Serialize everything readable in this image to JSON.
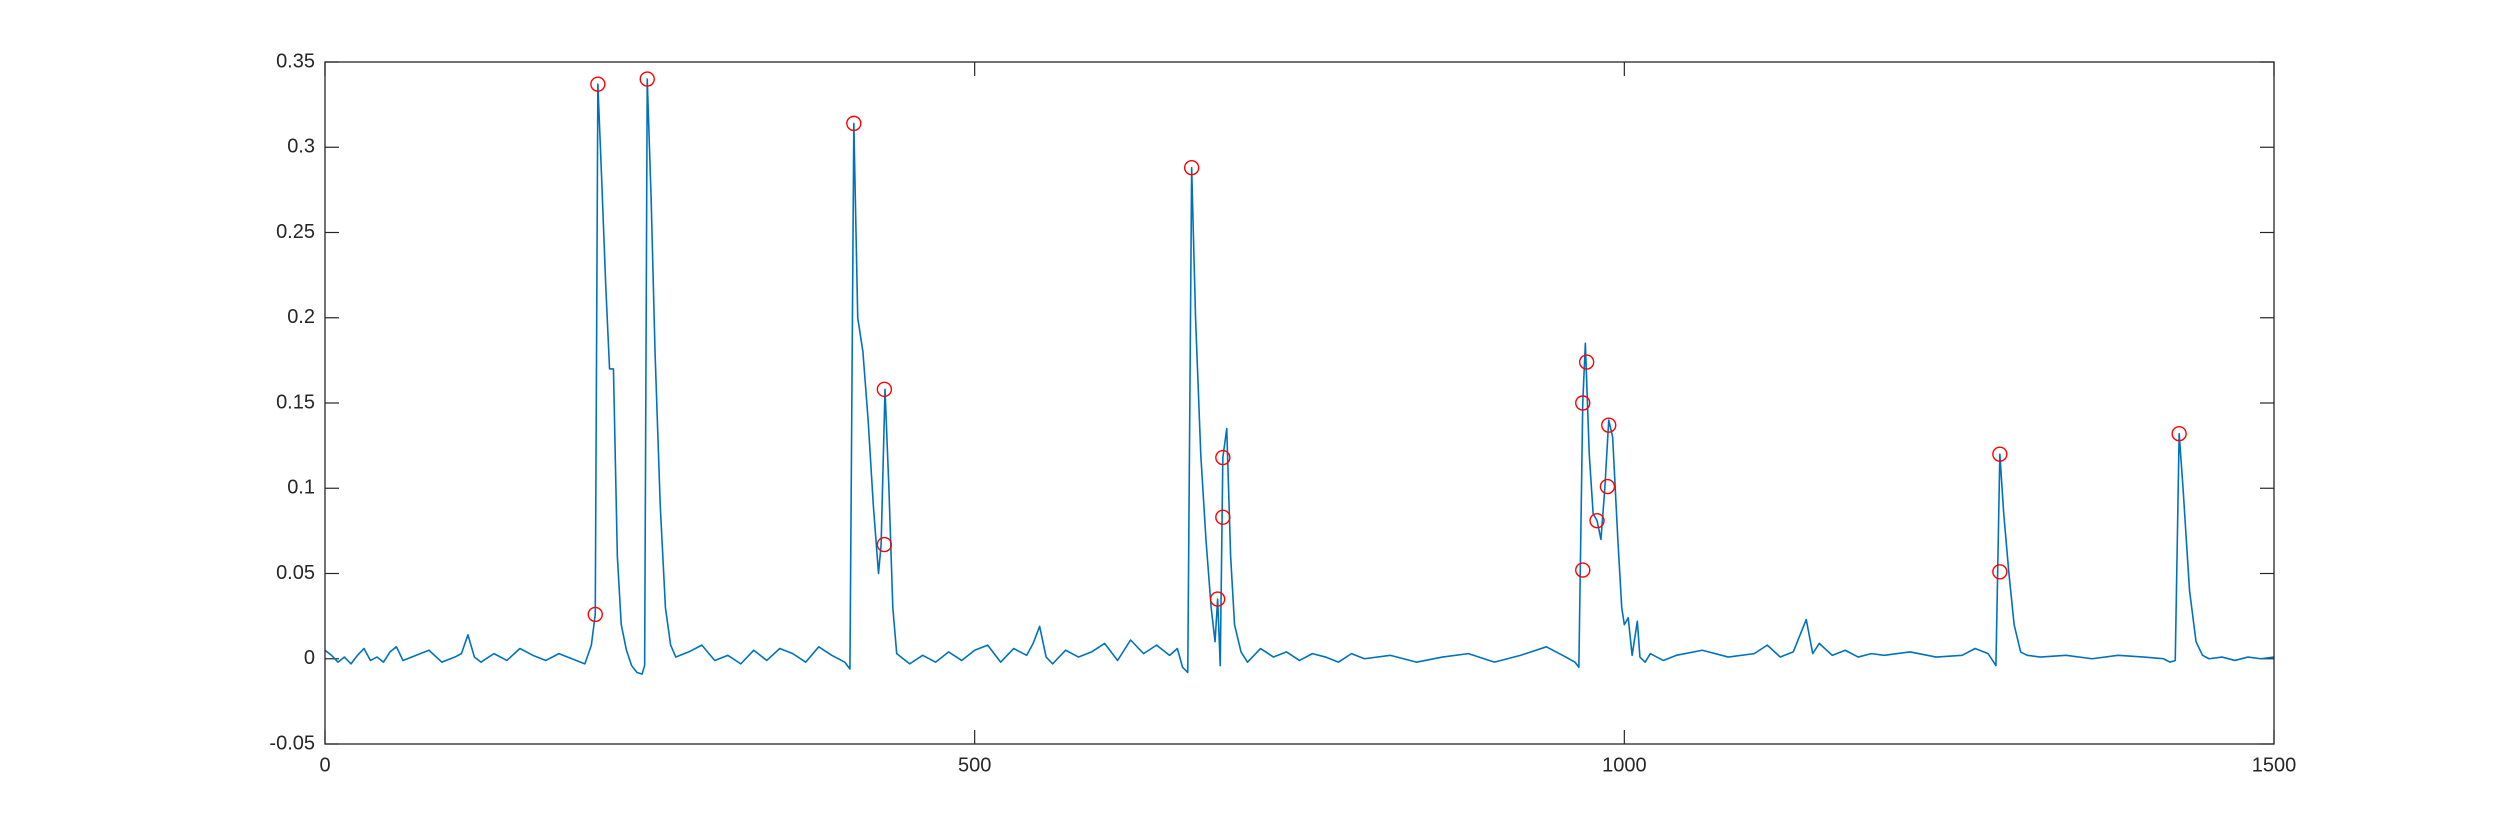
{
  "chart_data": {
    "type": "line",
    "xlim": [
      0,
      1500
    ],
    "xticks": [
      0,
      500,
      1000,
      1500
    ],
    "ylim": [
      -0.05,
      0.35
    ],
    "yticks": [
      -0.05,
      0,
      0.05,
      0.1,
      0.15,
      0.2,
      0.25,
      0.3,
      0.35
    ],
    "grid": false,
    "series": [
      {
        "type": "line",
        "color": "#0072bd",
        "x": [
          0,
          5,
          10,
          15,
          20,
          25,
          30,
          35,
          40,
          45,
          50,
          55,
          60,
          70,
          80,
          90,
          100,
          105,
          110,
          115,
          120,
          130,
          140,
          150,
          160,
          170,
          180,
          190,
          200,
          205,
          208,
          210,
          213,
          216,
          219,
          222,
          225,
          228,
          232,
          236,
          240,
          244,
          246,
          248,
          251,
          254,
          258,
          262,
          266,
          270,
          280,
          290,
          300,
          310,
          320,
          330,
          340,
          350,
          360,
          370,
          380,
          390,
          400,
          404,
          407,
          410,
          414,
          418,
          422,
          426,
          428,
          431,
          434,
          437,
          440,
          450,
          460,
          470,
          480,
          490,
          500,
          510,
          520,
          530,
          540,
          545,
          550,
          555,
          560,
          570,
          580,
          590,
          600,
          610,
          620,
          630,
          640,
          650,
          656,
          660,
          664,
          667,
          670,
          674,
          678,
          682,
          685,
          687,
          689,
          691,
          694,
          697,
          700,
          705,
          710,
          720,
          730,
          740,
          750,
          760,
          770,
          780,
          790,
          800,
          820,
          840,
          860,
          880,
          900,
          920,
          940,
          955,
          962,
          965,
          968,
          970,
          973,
          976,
          979,
          982,
          985,
          988,
          991,
          995,
          998,
          1000,
          1003,
          1006,
          1010,
          1012,
          1016,
          1020,
          1030,
          1040,
          1060,
          1080,
          1100,
          1110,
          1120,
          1130,
          1140,
          1145,
          1150,
          1160,
          1170,
          1180,
          1190,
          1200,
          1220,
          1240,
          1260,
          1270,
          1280,
          1286,
          1289,
          1292,
          1296,
          1300,
          1305,
          1310,
          1320,
          1340,
          1360,
          1380,
          1400,
          1415,
          1420,
          1424,
          1427,
          1430,
          1435,
          1440,
          1445,
          1450,
          1460,
          1470,
          1480,
          1490,
          1500
        ],
        "values": [
          0.005,
          0.002,
          -0.002,
          0.001,
          -0.003,
          0.002,
          0.006,
          -0.001,
          0.001,
          -0.002,
          0.004,
          0.007,
          -0.001,
          0.002,
          0.005,
          -0.002,
          0.001,
          0.003,
          0.014,
          0.001,
          -0.002,
          0.003,
          -0.001,
          0.006,
          0.002,
          -0.001,
          0.003,
          0.0,
          -0.003,
          0.008,
          0.026,
          0.337,
          0.28,
          0.22,
          0.17,
          0.17,
          0.06,
          0.02,
          0.005,
          -0.004,
          -0.008,
          -0.009,
          -0.004,
          0.34,
          0.27,
          0.18,
          0.09,
          0.03,
          0.008,
          0.001,
          0.004,
          0.008,
          -0.001,
          0.002,
          -0.003,
          0.005,
          -0.001,
          0.006,
          0.003,
          -0.002,
          0.007,
          0.002,
          -0.002,
          -0.006,
          0.314,
          0.2,
          0.18,
          0.14,
          0.09,
          0.05,
          0.067,
          0.158,
          0.1,
          0.03,
          0.003,
          -0.003,
          0.002,
          -0.002,
          0.004,
          -0.001,
          0.005,
          0.008,
          -0.002,
          0.006,
          0.002,
          0.009,
          0.019,
          0.001,
          -0.003,
          0.005,
          0.001,
          0.004,
          0.009,
          -0.001,
          0.011,
          0.003,
          0.008,
          0.002,
          0.006,
          -0.005,
          -0.008,
          0.288,
          0.2,
          0.12,
          0.07,
          0.03,
          0.01,
          0.035,
          -0.004,
          0.118,
          0.135,
          0.06,
          0.02,
          0.004,
          -0.002,
          0.006,
          0.001,
          0.004,
          -0.001,
          0.003,
          0.001,
          -0.002,
          0.003,
          0.0,
          0.002,
          -0.002,
          0.001,
          0.003,
          -0.002,
          0.002,
          0.007,
          0.001,
          -0.002,
          -0.005,
          0.15,
          0.185,
          0.12,
          0.085,
          0.081,
          0.07,
          0.1,
          0.14,
          0.13,
          0.07,
          0.03,
          0.02,
          0.024,
          0.002,
          0.022,
          0.001,
          -0.002,
          0.003,
          -0.001,
          0.002,
          0.005,
          0.001,
          0.003,
          0.008,
          0.001,
          0.004,
          0.023,
          0.003,
          0.009,
          0.002,
          0.005,
          0.001,
          0.003,
          0.002,
          0.004,
          0.001,
          0.002,
          0.006,
          0.003,
          -0.004,
          0.12,
          0.085,
          0.05,
          0.02,
          0.004,
          0.002,
          0.001,
          0.002,
          0.0,
          0.002,
          0.001,
          0.0,
          -0.002,
          -0.001,
          0.132,
          0.1,
          0.04,
          0.01,
          0.002,
          0.0,
          0.001,
          -0.001,
          0.001,
          0.0,
          0.001
        ]
      },
      {
        "type": "scatter",
        "color": "#ff0000",
        "x": [
          210,
          208,
          248,
          407,
          430.5,
          430.5,
          667,
          691,
          691,
          687,
          971,
          968,
          968,
          979,
          988,
          987,
          1289,
          1289,
          1427
        ],
        "values": [
          0.337,
          0.026,
          0.34,
          0.314,
          0.158,
          0.067,
          0.288,
          0.118,
          0.083,
          0.035,
          0.174,
          0.15,
          0.052,
          0.081,
          0.137,
          0.101,
          0.12,
          0.051,
          0.132
        ]
      }
    ]
  }
}
